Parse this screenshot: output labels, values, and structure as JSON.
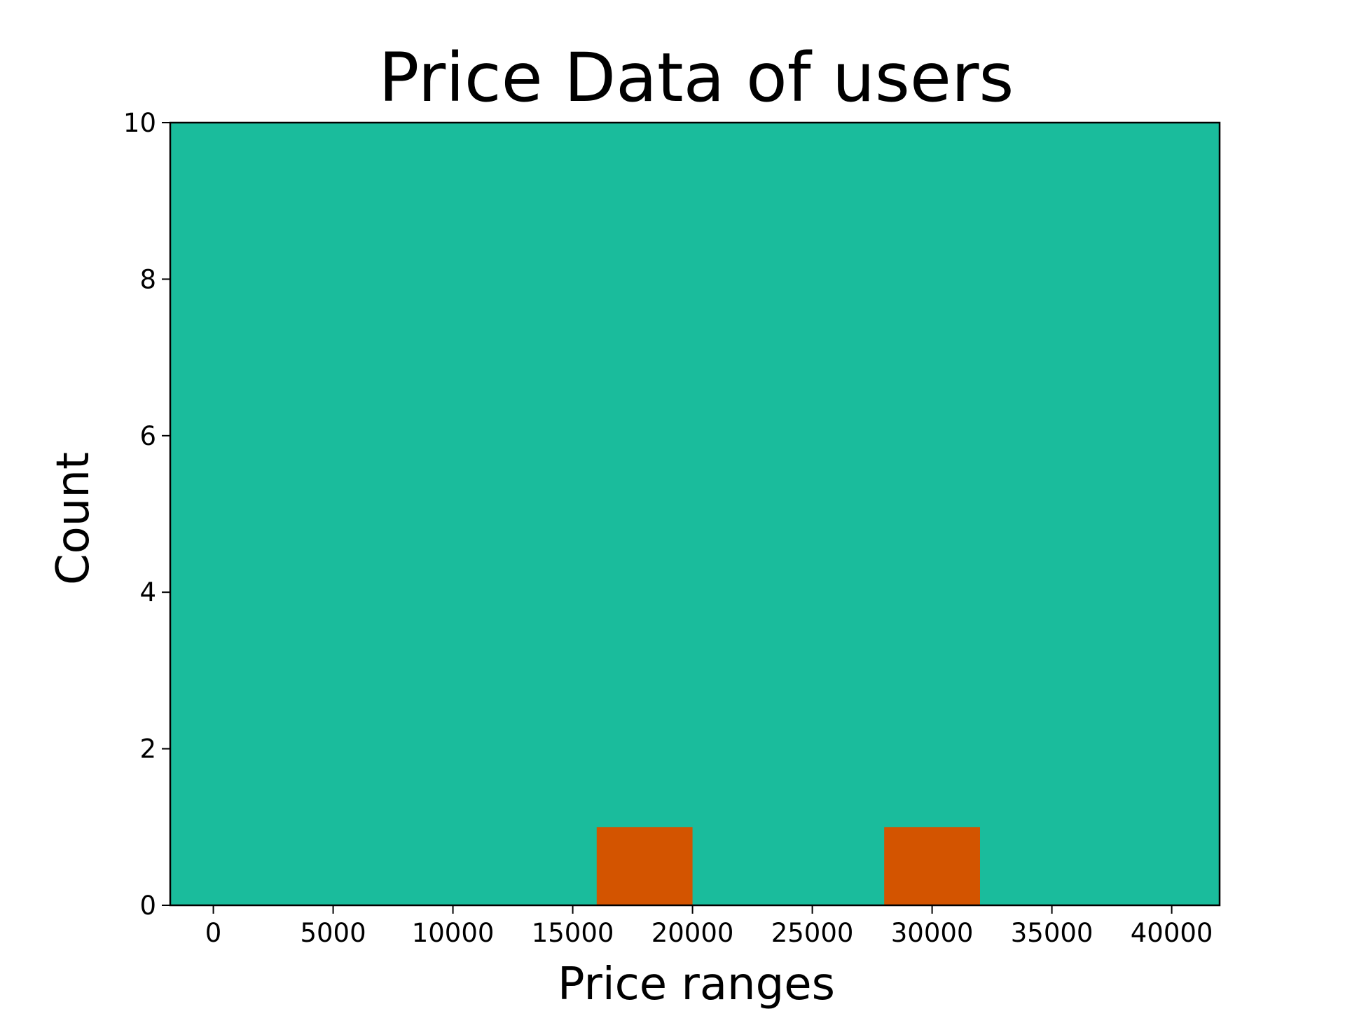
{
  "chart_data": {
    "type": "bar",
    "title": "Price Data of users",
    "xlabel": "Price ranges",
    "ylabel": "Count",
    "xlim": [
      -1800,
      42000
    ],
    "ylim": [
      0,
      10
    ],
    "x_ticks": [
      0,
      5000,
      10000,
      15000,
      20000,
      25000,
      30000,
      35000,
      40000
    ],
    "x_tick_labels": [
      "0",
      "5000",
      "10000",
      "15000",
      "20000",
      "25000",
      "30000",
      "35000",
      "40000"
    ],
    "y_ticks": [
      0,
      2,
      4,
      6,
      8,
      10
    ],
    "y_tick_labels": [
      "0",
      "2",
      "4",
      "6",
      "8",
      "10"
    ],
    "bars": [
      {
        "x_start": 16000,
        "x_end": 20000,
        "value": 1
      },
      {
        "x_start": 28000,
        "x_end": 32000,
        "value": 1
      }
    ],
    "plot_background_color": "#1ABC9C",
    "bar_color": "#D35400",
    "grid": false,
    "legend": "none"
  }
}
